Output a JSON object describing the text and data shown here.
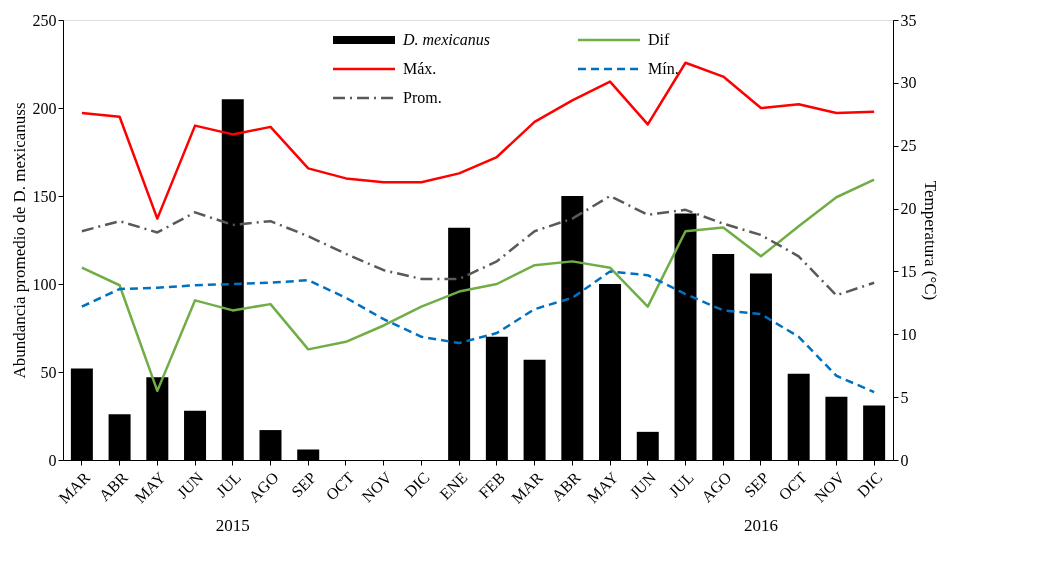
{
  "chart_data": {
    "type": "bar",
    "ylabel": "Abundancia promedio de D. mexicanuss",
    "y2label": "Temperatura (°C)",
    "categories": [
      "MAR",
      "ABR",
      "MAY",
      "JUN",
      "JUL",
      "AGO",
      "SEP",
      "OCT",
      "NOV",
      "DIC",
      "ENE",
      "FEB",
      "MAR",
      "ABR",
      "MAY",
      "JUN",
      "JUL",
      "AGO",
      "SEP",
      "OCT",
      "NOV",
      "DIC"
    ],
    "series": [
      {
        "name": "D. mexicanus",
        "color": "#000000",
        "values": [
          52,
          26,
          47,
          28,
          205,
          17,
          6,
          0,
          0,
          0,
          132,
          70,
          57,
          150,
          100,
          16,
          140,
          117,
          106,
          49,
          36,
          31
        ]
      },
      {
        "name": "Dif",
        "type": "line",
        "axis": "y2",
        "color": "#70ad47",
        "line_style": "solid",
        "values": [
          15.3,
          13.9,
          5.5,
          12.7,
          11.9,
          12.4,
          8.8,
          9.4,
          10.7,
          12.2,
          13.4,
          14.0,
          15.5,
          15.8,
          15.3,
          12.2,
          18.2,
          18.5,
          16.2,
          18.6,
          20.9,
          22.3
        ]
      },
      {
        "name": "Máx.",
        "type": "line",
        "axis": "y2",
        "color": "#ff0000",
        "line_style": "solid",
        "values": [
          27.6,
          27.3,
          19.2,
          26.6,
          25.9,
          26.5,
          23.2,
          22.4,
          22.1,
          22.1,
          22.8,
          24.1,
          26.9,
          28.6,
          30.1,
          26.7,
          31.6,
          30.5,
          28.0,
          28.3,
          27.6,
          27.7
        ]
      },
      {
        "name": "Mín.",
        "type": "line",
        "axis": "y2",
        "color": "#0070c0",
        "line_style": "dashed",
        "values": [
          12.2,
          13.6,
          13.7,
          13.9,
          14.0,
          14.1,
          14.3,
          12.9,
          11.2,
          9.8,
          9.3,
          10.1,
          12.0,
          12.9,
          15.0,
          14.7,
          13.2,
          11.9,
          11.6,
          9.8,
          6.7,
          5.4
        ]
      },
      {
        "name": "Prom.",
        "type": "line",
        "axis": "y2",
        "color": "#595959",
        "line_style": "dashdot",
        "values": [
          18.2,
          19.0,
          18.1,
          19.7,
          18.7,
          19.0,
          17.8,
          16.4,
          15.1,
          14.4,
          14.4,
          15.8,
          18.2,
          19.2,
          21.0,
          19.5,
          19.9,
          18.8,
          17.9,
          16.2,
          13.1,
          14.1
        ]
      }
    ],
    "ylim": [
      0,
      250
    ],
    "yticks": [
      0,
      50,
      100,
      150,
      200,
      250
    ],
    "y2lim": [
      0,
      35
    ],
    "y2ticks": [
      0,
      5,
      10,
      15,
      20,
      25,
      30,
      35
    ],
    "grid": false,
    "legend": "top",
    "marker": "none",
    "annotations": [
      "2015",
      "2016"
    ]
  }
}
